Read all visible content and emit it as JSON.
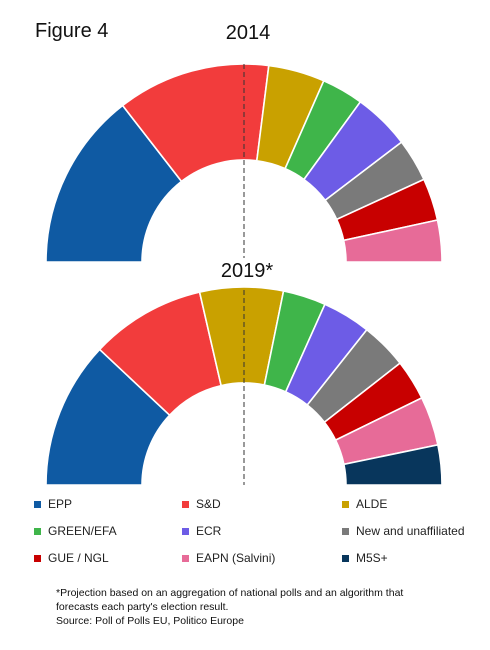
{
  "figure_label": "Figure 4",
  "chart_data": [
    {
      "type": "pie",
      "subtype": "semicircle-parliament",
      "title": "2014",
      "series": [
        {
          "name": "EPP",
          "value": 29.0,
          "color": "#0f5aa3"
        },
        {
          "name": "S&D",
          "value": 25.0,
          "color": "#f23c3c"
        },
        {
          "name": "ALDE",
          "value": 9.2,
          "color": "#c9a100"
        },
        {
          "name": "GREEN/EFA",
          "value": 6.8,
          "color": "#3fb54a"
        },
        {
          "name": "ECR",
          "value": 9.3,
          "color": "#6d5ce6"
        },
        {
          "name": "New and unaffiliated",
          "value": 7.0,
          "color": "#7a7a7a"
        },
        {
          "name": "GUE / NGL",
          "value": 6.9,
          "color": "#c80000"
        },
        {
          "name": "EAPN (Salvini)",
          "value": 6.8,
          "color": "#e76b98"
        }
      ]
    },
    {
      "type": "pie",
      "subtype": "semicircle-parliament",
      "title": "2019*",
      "series": [
        {
          "name": "EPP",
          "value": 24.0,
          "color": "#0f5aa3"
        },
        {
          "name": "S&D",
          "value": 18.8,
          "color": "#f23c3c"
        },
        {
          "name": "ALDE",
          "value": 13.6,
          "color": "#c9a100"
        },
        {
          "name": "GREEN/EFA",
          "value": 7.0,
          "color": "#3fb54a"
        },
        {
          "name": "ECR",
          "value": 7.9,
          "color": "#6d5ce6"
        },
        {
          "name": "New and unaffiliated",
          "value": 7.6,
          "color": "#7a7a7a"
        },
        {
          "name": "GUE / NGL",
          "value": 6.6,
          "color": "#c80000"
        },
        {
          "name": "EAPN (Salvini)",
          "value": 8.0,
          "color": "#e76b98"
        },
        {
          "name": "M5S+",
          "value": 6.5,
          "color": "#08365c"
        }
      ]
    }
  ],
  "legend": [
    {
      "label": "EPP",
      "color": "#0f5aa3"
    },
    {
      "label": "S&D",
      "color": "#f23c3c"
    },
    {
      "label": "ALDE",
      "color": "#c9a100"
    },
    {
      "label": "GREEN/EFA",
      "color": "#3fb54a"
    },
    {
      "label": "ECR",
      "color": "#6d5ce6"
    },
    {
      "label": "New and unaffiliated",
      "color": "#7a7a7a"
    },
    {
      "label": "GUE / NGL",
      "color": "#c80000"
    },
    {
      "label": "EAPN (Salvini)",
      "color": "#e76b98"
    },
    {
      "label": "M5S+",
      "color": "#08365c"
    }
  ],
  "footnote": {
    "line1": "*Projection based on an aggregation of national polls and an algorithm that",
    "line2": "forecasts each party's election result.",
    "line3": "Source: Poll of Polls EU, Politico Europe"
  }
}
